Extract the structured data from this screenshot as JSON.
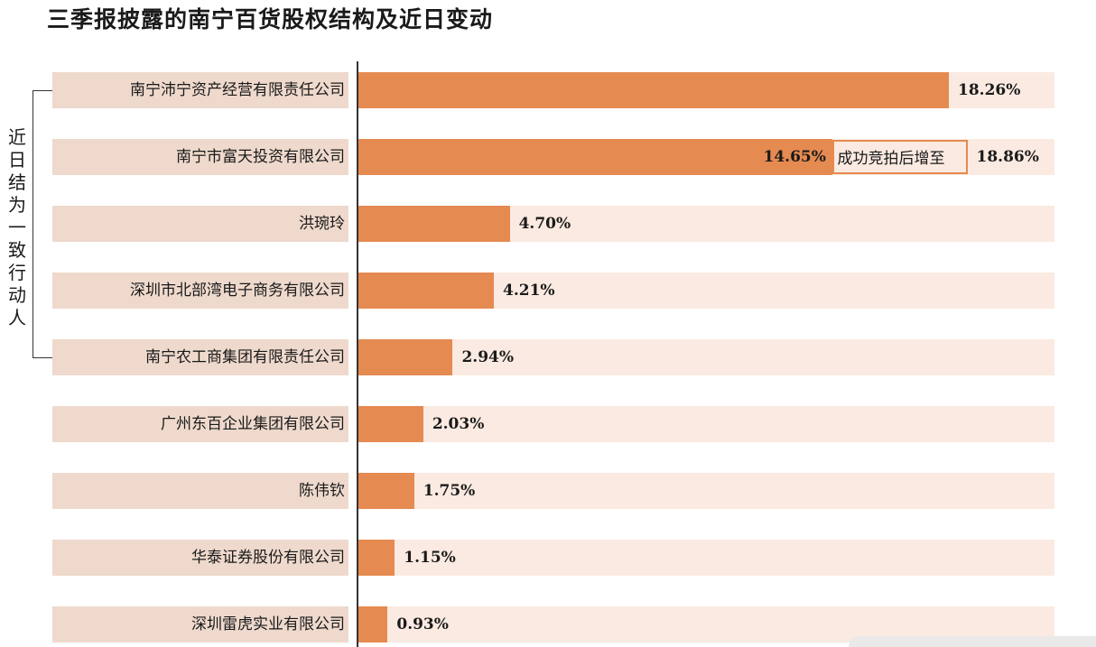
{
  "chart_data": {
    "type": "bar",
    "orientation": "horizontal",
    "title": "三季报披露的南宁百货股权结构及近日变动",
    "categories": [
      "南宁沛宁资产经营有限责任公司",
      "南宁市富天投资有限公司",
      "洪琬玲",
      "深圳市北部湾电子商务有限公司",
      "南宁农工商集团有限责任公司",
      "广州东百企业集团有限公司",
      "陈伟钦",
      "华泰证券股份有限公司",
      "深圳雷虎实业有限公司"
    ],
    "values": [
      18.26,
      14.65,
      4.7,
      4.21,
      2.94,
      2.03,
      1.75,
      1.15,
      0.93
    ],
    "value_labels": [
      "18.26%",
      "14.65%",
      "4.70%",
      "4.21%",
      "2.94%",
      "2.03%",
      "1.75%",
      "1.15%",
      "0.93%"
    ],
    "xlim": [
      0,
      18.86
    ],
    "unit": "%",
    "colors": {
      "bar": "#e58a50",
      "track": "#fbeae1",
      "label_bg": "#eed9cc"
    },
    "annotation": {
      "category_index": 1,
      "note": "成功竞拍后增至",
      "new_value": 18.86,
      "new_value_label": "18.86%"
    },
    "bracket": {
      "text": "近日结为一致行动人",
      "from_index": 0,
      "to_index": 4
    }
  }
}
